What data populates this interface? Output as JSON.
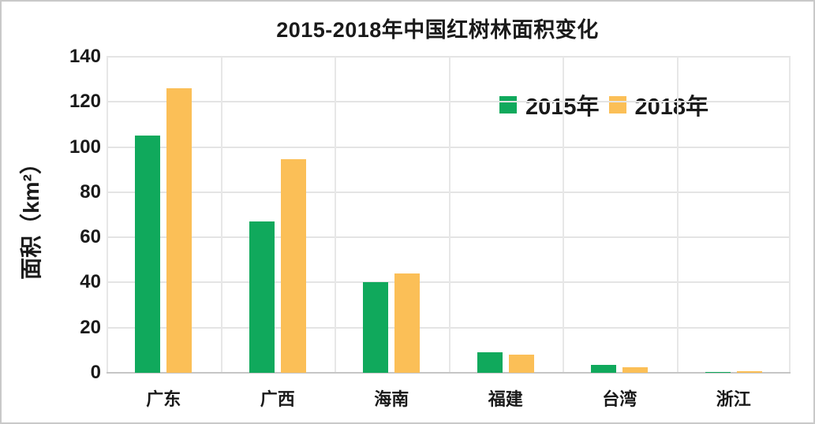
{
  "frame": {
    "border_color": "#c9c9c9",
    "background_color": "#ffffff"
  },
  "chart_data": {
    "type": "bar",
    "title": "2015-2018年中国红树林面积变化",
    "xlabel": "",
    "ylabel": "面积（km²）",
    "categories": [
      "广东",
      "广西",
      "海南",
      "福建",
      "台湾",
      "浙江"
    ],
    "series": [
      {
        "name": "2015年",
        "color": "#10A95C",
        "values": [
          105,
          67,
          40,
          9,
          3.5,
          0.2
        ]
      },
      {
        "name": "2018年",
        "color": "#FBBF57",
        "values": [
          126,
          94.5,
          44,
          8,
          2.5,
          0.8
        ]
      }
    ],
    "ylim": [
      0,
      140
    ],
    "ytick_interval": 20,
    "yticks": [
      "140",
      "120",
      "100",
      "80",
      "60",
      "40",
      "20",
      "0"
    ],
    "grid": true,
    "legend_position": "top-right-inside",
    "gridline_color": "#e4e4e4",
    "axis_line_color": "#c6c6c6",
    "text_color": "#1a1a1a"
  }
}
